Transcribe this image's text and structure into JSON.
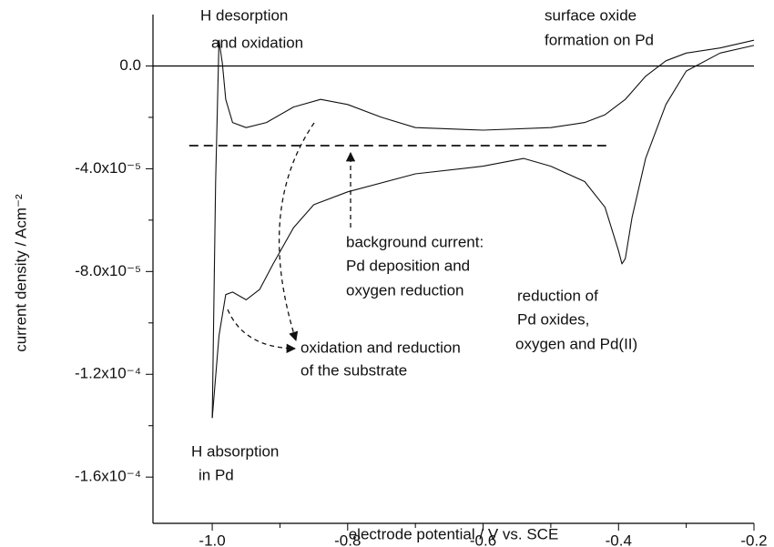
{
  "chart_data": {
    "type": "line",
    "x_label": "electrode potential / V vs. SCE",
    "y_label": "current density / Acm⁻²",
    "xlim": [
      -1.0875,
      -0.2
    ],
    "ylim": [
      -0.000178,
      2e-05
    ],
    "xticks": [
      {
        "value": -1,
        "label": "-1.0"
      },
      -0.8,
      -0.6,
      -0.4,
      -0.2
    ],
    "xminor": [
      -0.9,
      -0.7,
      -0.5,
      -0.3
    ],
    "yticks": [
      {
        "value": 0,
        "label": "0.0"
      },
      {
        "value": -4e-05,
        "label": "-4.0x10⁻⁵"
      },
      {
        "value": -8e-05,
        "label": "-8.0x10⁻⁵"
      },
      {
        "value": -0.00012,
        "label": "-1.2x10⁻⁴"
      },
      {
        "value": -0.00016,
        "label": "-1.6x10⁻⁴"
      }
    ],
    "yminor": [
      -2e-05,
      -6e-05,
      -0.0001,
      -0.00014
    ],
    "zero_line": true,
    "series": [
      {
        "color": "#111111",
        "dashed": false,
        "x": [
          -1.0,
          -0.995,
          -0.99,
          -0.985,
          -0.98,
          -0.97,
          -0.95,
          -0.92,
          -0.88,
          -0.84,
          -0.8,
          -0.75,
          -0.7,
          -0.6,
          -0.5,
          -0.45,
          -0.42,
          -0.39,
          -0.36,
          -0.33,
          -0.3,
          -0.25,
          -0.2
        ],
        "values": [
          -0.000137,
          -4.5e-05,
          1e-05,
          1e-06,
          -1.3e-05,
          -2.2e-05,
          -2.4e-05,
          -2.2e-05,
          -1.6e-05,
          -1.3e-05,
          -1.5e-05,
          -2e-05,
          -2.4e-05,
          -2.5e-05,
          -2.4e-05,
          -2.2e-05,
          -1.9e-05,
          -1.3e-05,
          -4e-06,
          2e-06,
          5e-06,
          7e-06,
          1e-05
        ]
      },
      {
        "color": "#111111",
        "dashed": false,
        "x": [
          -0.2,
          -0.25,
          -0.3,
          -0.33,
          -0.36,
          -0.38,
          -0.39,
          -0.395,
          -0.4,
          -0.42,
          -0.45,
          -0.5,
          -0.54,
          -0.6,
          -0.7,
          -0.8,
          -0.85,
          -0.88,
          -0.91,
          -0.93,
          -0.95,
          -0.97,
          -0.98,
          -0.99,
          -1.0
        ],
        "values": [
          8e-06,
          5e-06,
          -2e-06,
          -1.5e-05,
          -3.6e-05,
          -5.9e-05,
          -7.5e-05,
          -7.7e-05,
          -7.2e-05,
          -5.5e-05,
          -4.5e-05,
          -3.9e-05,
          -3.6e-05,
          -3.9e-05,
          -4.2e-05,
          -4.9e-05,
          -5.4e-05,
          -6.3e-05,
          -7.7e-05,
          -8.7e-05,
          -9.1e-05,
          -8.8e-05,
          -8.9e-05,
          -0.000105,
          -0.000137
        ]
      },
      {
        "color": "#111111",
        "dashed": true,
        "x": [
          -1.034,
          -0.415
        ],
        "values": [
          -3.1e-05,
          -3.1e-05
        ]
      }
    ],
    "annotations": [
      [
        "H desorption",
        "and oxidation"
      ],
      [
        "surface oxide",
        "formation on Pd"
      ],
      [
        "background current:",
        "Pd deposition and",
        "oxygen reduction"
      ],
      [
        "reduction of",
        "Pd oxides,",
        "oxygen and Pd(II)"
      ],
      [
        "oxidation and reduction",
        "of the substrate"
      ],
      [
        "H absorption",
        "in Pd"
      ]
    ]
  }
}
